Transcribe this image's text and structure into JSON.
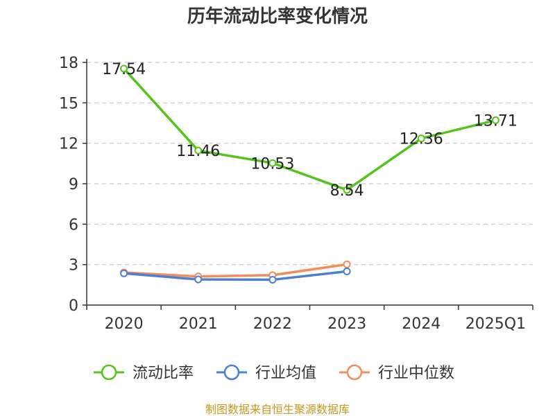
{
  "chart_data": {
    "type": "line",
    "title": "历年流动比率变化情况",
    "categories": [
      "2020",
      "2021",
      "2022",
      "2023",
      "2024",
      "2025Q1"
    ],
    "y_ticks": [
      "0",
      "3",
      "6",
      "9",
      "12",
      "15",
      "18"
    ],
    "ylim": [
      0,
      18
    ],
    "grid": true,
    "legend_position": "bottom",
    "series": [
      {
        "name": "流动比率",
        "color": "#52c41a",
        "values": [
          17.54,
          11.46,
          10.53,
          8.54,
          12.36,
          13.71
        ],
        "labels": [
          "17.54",
          "11.46",
          "10.53",
          "8.54",
          "12.36",
          "13.71"
        ]
      },
      {
        "name": "行业均值",
        "color": "#4a7fd6",
        "values": [
          2.35,
          1.9,
          1.88,
          2.5,
          null,
          null
        ]
      },
      {
        "name": "行业中位数",
        "color": "#f28c5a",
        "values": [
          2.42,
          2.12,
          2.22,
          3.02,
          null,
          null
        ]
      }
    ]
  },
  "footer": {
    "source": "制图数据来自恒生聚源数据库"
  }
}
